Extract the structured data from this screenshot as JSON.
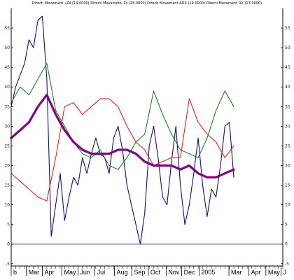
{
  "chart_data": {
    "type": "line",
    "title": "Directi Movement +DI (14.0000) Directi Movement -DI (25.0000) Directi Movement ADX (19.0000) Directi Movement DX (17.0000)",
    "xlabel": "",
    "ylabel": "",
    "ylim": [
      -7,
      60
    ],
    "xlim": [
      0,
      61
    ],
    "y_ticks": [
      -5,
      0,
      5,
      10,
      15,
      20,
      25,
      30,
      35,
      40,
      45,
      50,
      55
    ],
    "y_tick_labels": [
      "-5",
      "0",
      "5",
      "10",
      "15",
      "20",
      "25",
      "30",
      "35",
      "40",
      "45",
      "50",
      "55"
    ],
    "x_ticks": [
      {
        "label": "b",
        "x": 0
      },
      {
        "label": "Mar",
        "x": 3.4
      },
      {
        "label": "Apr",
        "x": 7
      },
      {
        "label": "May",
        "x": 11.4
      },
      {
        "label": "Jun",
        "x": 15
      },
      {
        "label": "Jul",
        "x": 18.8
      },
      {
        "label": "Aug",
        "x": 23.2
      },
      {
        "label": "Sep",
        "x": 27.1
      },
      {
        "label": "Oct",
        "x": 30.8
      },
      {
        "label": "Nov",
        "x": 34.8
      },
      {
        "label": "Dec",
        "x": 38.3
      },
      {
        "label": "2005",
        "x": 42.2
      },
      {
        "label": "Mar",
        "x": 48.9
      },
      {
        "label": "Apr",
        "x": 53.4
      },
      {
        "label": "May",
        "x": 57.2
      },
      {
        "label": "J",
        "x": 60.6
      }
    ],
    "grid": false,
    "zero_line": 0,
    "series": [
      {
        "color": "#101070",
        "width": 1.1,
        "x": [
          0,
          1,
          2,
          3,
          4,
          5,
          6,
          7,
          8,
          9,
          10,
          11,
          12,
          13,
          14,
          15,
          16,
          17,
          18,
          19,
          20,
          21,
          22,
          23,
          24,
          25,
          26,
          27,
          28,
          29,
          30,
          31,
          32,
          33,
          34,
          35,
          36,
          37,
          38,
          39,
          40,
          41,
          42,
          43,
          44,
          45,
          46,
          47,
          48,
          49,
          50
        ],
        "values": [
          35,
          40,
          43,
          46,
          52,
          50,
          57,
          58,
          42,
          2,
          10,
          18,
          6,
          12,
          17,
          15,
          22,
          18,
          23,
          27,
          23,
          22,
          18,
          27,
          30,
          24,
          15,
          10,
          5,
          0,
          8,
          25,
          30,
          22,
          12,
          10,
          21,
          30,
          15,
          5,
          10,
          18,
          27,
          15,
          7,
          14,
          12,
          20,
          30,
          31,
          17
        ]
      },
      {
        "color": "#208020",
        "width": 1.1,
        "x": [
          0,
          2,
          4,
          6,
          8,
          10,
          12,
          14,
          16,
          18,
          20,
          22,
          24,
          26,
          28,
          30,
          32,
          34,
          36,
          38,
          40,
          42,
          44,
          46,
          48,
          50
        ],
        "values": [
          36,
          40,
          38,
          42,
          46,
          34,
          30,
          26,
          23,
          22,
          24,
          20,
          19,
          22,
          26,
          28,
          39,
          33,
          28,
          24,
          23,
          22,
          27,
          34,
          39,
          35
        ]
      },
      {
        "color": "#e02020",
        "width": 1.1,
        "x": [
          0,
          2,
          4,
          6,
          8,
          10,
          12,
          14,
          16,
          18,
          20,
          22,
          24,
          26,
          28,
          30,
          32,
          34,
          36,
          38,
          40,
          42,
          44,
          46,
          48,
          50
        ],
        "values": [
          18,
          16,
          14,
          12,
          11,
          22,
          35,
          36,
          33,
          35,
          37,
          37,
          35,
          30,
          26,
          24,
          20,
          21,
          22,
          22,
          37,
          31,
          28,
          26,
          22,
          25
        ]
      },
      {
        "color": "#800080",
        "width": 3.2,
        "x": [
          0,
          2,
          4,
          6,
          8,
          10,
          12,
          14,
          16,
          18,
          20,
          22,
          24,
          26,
          28,
          30,
          32,
          34,
          36,
          38,
          40,
          42,
          44,
          46,
          48,
          50
        ],
        "values": [
          27,
          29,
          31,
          35,
          38,
          33,
          29,
          26,
          24,
          23,
          23,
          23,
          24,
          24,
          23,
          21,
          20,
          20,
          20,
          19,
          20,
          18,
          17,
          17,
          18,
          19
        ]
      }
    ]
  }
}
